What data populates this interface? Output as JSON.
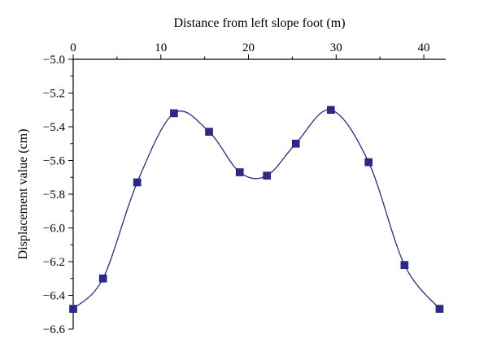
{
  "chart_data": {
    "type": "line",
    "xlabel": "Distance from left slope foot (m)",
    "ylabel": "Displacement value (cm)",
    "xlim": [
      0,
      42.5
    ],
    "ylim": [
      -6.6,
      -5.0
    ],
    "x_ticks": [
      0,
      10,
      20,
      30,
      40
    ],
    "y_ticks": [
      -5.0,
      -5.2,
      -5.4,
      -5.6,
      -5.8,
      -6.0,
      -6.2,
      -6.4,
      -6.6
    ],
    "x_axis_position": "top",
    "grid": false,
    "legend": "none",
    "series": [
      {
        "x": [
          0,
          3.4,
          7.3,
          11.5,
          15.5,
          19.0,
          22.1,
          25.4,
          29.4,
          33.7,
          37.8,
          41.8
        ],
        "y": [
          -6.48,
          -6.3,
          -5.73,
          -5.32,
          -5.43,
          -5.67,
          -5.69,
          -5.5,
          -5.3,
          -5.61,
          -6.22,
          -6.48
        ],
        "color": "#2b2a8c",
        "marker": "square",
        "smooth": true
      }
    ]
  }
}
